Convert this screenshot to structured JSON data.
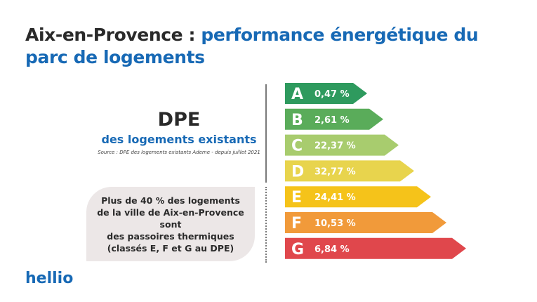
{
  "title": {
    "part1": "Aix-en-Provence : ",
    "part2": "performance énergétique du parc de logements"
  },
  "dpe_label": "DPE",
  "subtitle": "des logements existants",
  "source": "Source : DPE des logements existants Ademe - depuis juillet 2021",
  "note": "Plus de 40 % des logements\nde la ville de Aix-en-Provence sont\ndes passoires thermiques\n(classés E, F et G au DPE)",
  "logo": "hellio",
  "chart_data": {
    "type": "bar",
    "categories": [
      "A",
      "B",
      "C",
      "D",
      "E",
      "F",
      "G"
    ],
    "values": [
      0.47,
      2.61,
      22.37,
      32.77,
      24.41,
      10.53,
      6.84
    ],
    "value_labels": [
      "0,47 %",
      "2,61 %",
      "22,37 %",
      "32,77 %",
      "24,41 %",
      "10,53 %",
      "6,84 %"
    ],
    "colors": [
      "#2e9a5e",
      "#5aac5a",
      "#a8cc6e",
      "#e8d44d",
      "#f5c31a",
      "#f19a3a",
      "#e0474c"
    ],
    "title": "",
    "xlabel": "",
    "ylabel": ""
  }
}
